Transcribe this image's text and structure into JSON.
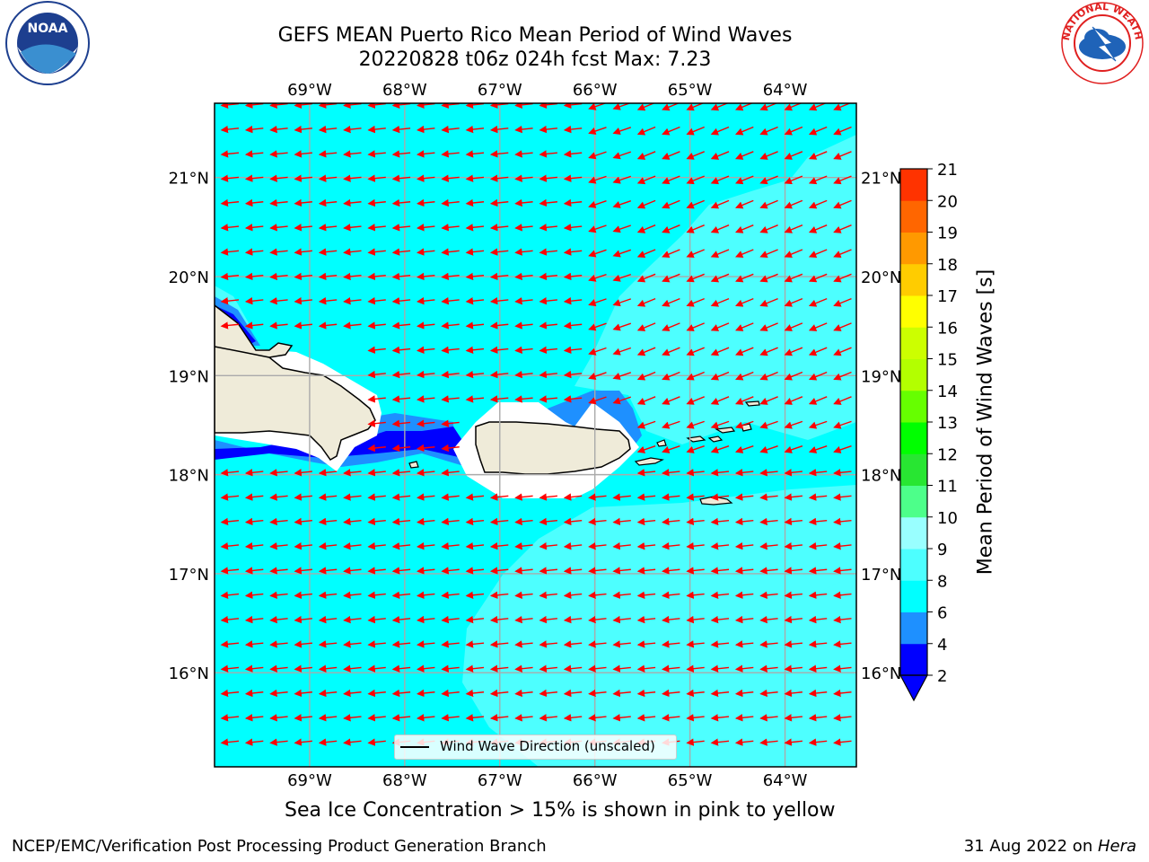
{
  "title": {
    "line1": "GEFS MEAN Puerto Rico Mean Period of Wind Waves",
    "line2": "20220828 t06z 024h fcst   Max: 7.23"
  },
  "map": {
    "lon_labels": [
      "69°W",
      "68°W",
      "67°W",
      "66°W",
      "65°W",
      "64°W"
    ],
    "lat_labels": [
      "21°N",
      "20°N",
      "19°N",
      "18°N",
      "17°N",
      "16°N"
    ],
    "lon_values": [
      -69,
      -68,
      -67,
      -66,
      -65,
      -64
    ],
    "lat_values": [
      21,
      20,
      19,
      18,
      17,
      16
    ],
    "extent": {
      "lon_min": -70,
      "lon_max": -63.25,
      "lat_min": 15.05,
      "lat_max": 21.75
    },
    "land_color": "#efebd9",
    "arrow_color": "#ff0000",
    "arrow_direction": "westward (toward west-southwest)",
    "legend_label": "Wind Wave Direction (unscaled)"
  },
  "colorbar": {
    "label": "Mean Period of Wind Waves [s]",
    "ticks": [
      "2",
      "4",
      "6",
      "8",
      "9",
      "10",
      "11",
      "12",
      "13",
      "14",
      "15",
      "16",
      "17",
      "18",
      "19",
      "20",
      "21"
    ],
    "colors": [
      "#0000ff",
      "#1e90ff",
      "#00ffff",
      "#4dffff",
      "#99ffff",
      "#4dff8a",
      "#28e632",
      "#00ff00",
      "#66ff00",
      "#b3ff00",
      "#ccff00",
      "#ffff00",
      "#ffcc00",
      "#ff9900",
      "#ff6600",
      "#ff3300",
      "#ff0000"
    ],
    "extend_color": "#0000ff"
  },
  "caption": "Sea Ice Concentration > 15% is shown in pink to yellow",
  "footer": {
    "left": "NCEP/EMC/Verification Post Processing Product Generation Branch",
    "right_prefix": "31 Aug 2022 on ",
    "right_host": "Hera"
  },
  "logos": {
    "noaa": "NOAA",
    "nws": "NATIONAL WEATHER SERVICE"
  }
}
